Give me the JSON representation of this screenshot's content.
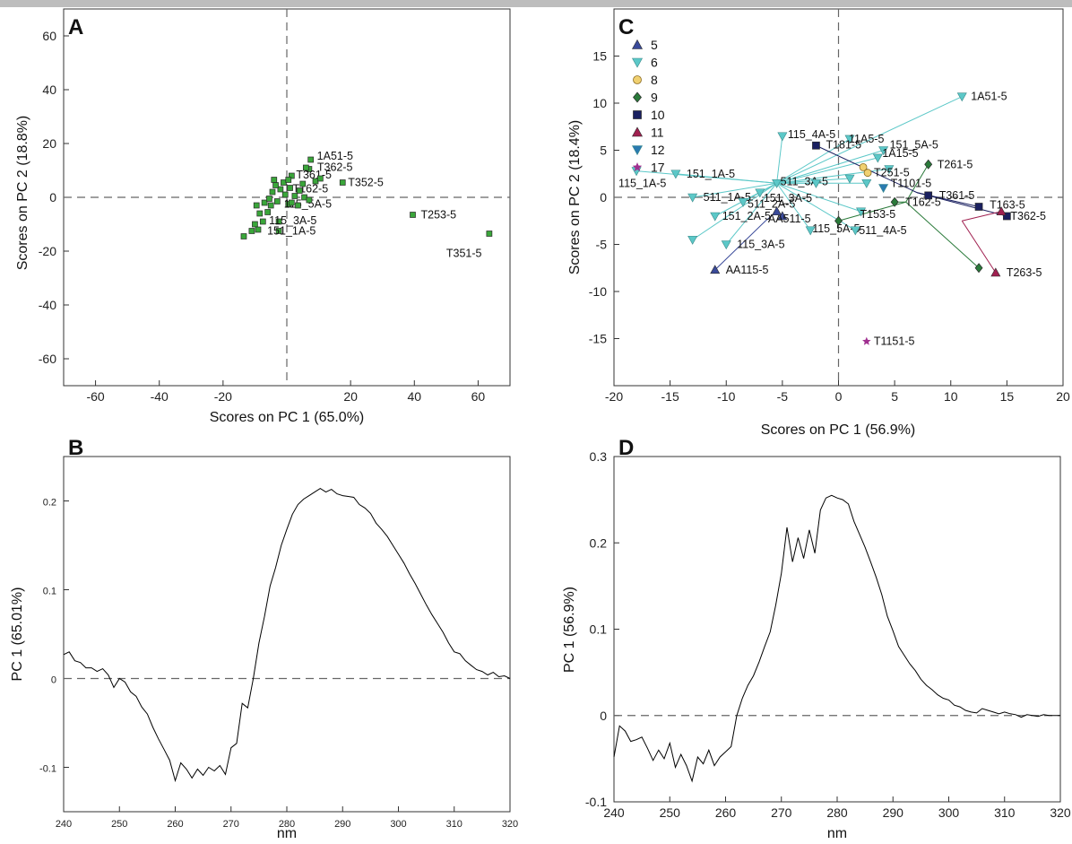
{
  "chart_data": [
    {
      "panel": "A",
      "type": "scatter",
      "xlabel": "Scores on PC 1 (65.0%)",
      "ylabel": "Scores on PC 2 (18.8%)",
      "xlim": [
        -70,
        70
      ],
      "ylim": [
        -70,
        70
      ],
      "xticks": [
        -60,
        -40,
        -20,
        20,
        40,
        60
      ],
      "yticks": [
        -60,
        -40,
        -20,
        0,
        20,
        40,
        60
      ],
      "grid": false,
      "marker_color": "#3aa63a",
      "points": [
        {
          "x": 7.5,
          "y": 14.0,
          "label": "1A51-5"
        },
        {
          "x": 7.0,
          "y": 10.5,
          "label": "T362-5"
        },
        {
          "x": 6.0,
          "y": 11.0,
          "label": ""
        },
        {
          "x": 1.5,
          "y": 8.0,
          "label": "T361-5"
        },
        {
          "x": 17.5,
          "y": 5.5,
          "label": "T352-5"
        },
        {
          "x": 1.0,
          "y": 3.5,
          "label": "T162-5"
        },
        {
          "x": 0.5,
          "y": -2.5,
          "label": "115_5A-5"
        },
        {
          "x": -2.5,
          "y": -9.0,
          "label": "115_3A-5"
        },
        {
          "x": -2.5,
          "y": -12.5,
          "label": "151_1A-5"
        },
        {
          "x": 39.5,
          "y": -6.5,
          "label": "T253-5"
        },
        {
          "x": 63.5,
          "y": -13.5,
          "label": "T351-5"
        },
        {
          "x": 9.0,
          "y": 6.0,
          "label": ""
        },
        {
          "x": 10.5,
          "y": 7.0,
          "label": ""
        },
        {
          "x": 5.0,
          "y": 5.0,
          "label": ""
        },
        {
          "x": 4.0,
          "y": 2.5,
          "label": ""
        },
        {
          "x": 2.5,
          "y": 0.5,
          "label": ""
        },
        {
          "x": 5.5,
          "y": 0.0,
          "label": ""
        },
        {
          "x": 7.0,
          "y": -1.0,
          "label": ""
        },
        {
          "x": 3.5,
          "y": -3.0,
          "label": ""
        },
        {
          "x": 1.5,
          "y": -2.0,
          "label": ""
        },
        {
          "x": -0.5,
          "y": 1.0,
          "label": ""
        },
        {
          "x": -2.0,
          "y": 3.0,
          "label": ""
        },
        {
          "x": -3.5,
          "y": 4.5,
          "label": ""
        },
        {
          "x": -4.5,
          "y": 2.0,
          "label": ""
        },
        {
          "x": -3.0,
          "y": -1.5,
          "label": ""
        },
        {
          "x": -5.0,
          "y": -3.0,
          "label": ""
        },
        {
          "x": -7.0,
          "y": -2.0,
          "label": ""
        },
        {
          "x": -6.0,
          "y": -5.5,
          "label": ""
        },
        {
          "x": -8.5,
          "y": -6.0,
          "label": ""
        },
        {
          "x": -7.5,
          "y": -9.0,
          "label": ""
        },
        {
          "x": -10.0,
          "y": -10.0,
          "label": ""
        },
        {
          "x": -9.0,
          "y": -12.0,
          "label": ""
        },
        {
          "x": -11.0,
          "y": -12.5,
          "label": ""
        },
        {
          "x": -13.5,
          "y": -14.5,
          "label": ""
        },
        {
          "x": -4.0,
          "y": 6.5,
          "label": ""
        },
        {
          "x": -1.0,
          "y": 5.5,
          "label": ""
        },
        {
          "x": 0.5,
          "y": 6.5,
          "label": ""
        },
        {
          "x": -5.5,
          "y": -0.5,
          "label": ""
        },
        {
          "x": -9.5,
          "y": -3.0,
          "label": ""
        }
      ]
    },
    {
      "panel": "B",
      "type": "line",
      "xlabel": "nm",
      "ylabel": "PC 1 (65.01%)",
      "xlim": [
        240,
        320
      ],
      "ylim": [
        -0.15,
        0.25
      ],
      "xticks": [
        240,
        250,
        260,
        270,
        280,
        290,
        300,
        310,
        320
      ],
      "yticks": [
        -0.1,
        0,
        0.1,
        0.2
      ],
      "ytick_labels": [
        "-0.1",
        "0",
        "0.1",
        "0.2"
      ],
      "x": [
        240,
        241,
        242,
        243,
        244,
        245,
        246,
        247,
        248,
        249,
        250,
        251,
        252,
        253,
        254,
        255,
        256,
        257,
        258,
        259,
        260,
        261,
        262,
        263,
        264,
        265,
        266,
        267,
        268,
        269,
        270,
        271,
        272,
        273,
        274,
        275,
        276,
        277,
        278,
        279,
        280,
        281,
        282,
        283,
        284,
        285,
        286,
        287,
        288,
        289,
        290,
        291,
        292,
        293,
        294,
        295,
        296,
        297,
        298,
        299,
        300,
        301,
        302,
        303,
        304,
        305,
        306,
        307,
        308,
        309,
        310,
        311,
        312,
        313,
        314,
        315,
        316,
        317,
        318,
        319,
        320
      ],
      "values": [
        0.027,
        0.03,
        0.02,
        0.018,
        0.012,
        0.012,
        0.008,
        0.011,
        0.004,
        -0.01,
        0.0,
        -0.004,
        -0.015,
        -0.02,
        -0.032,
        -0.04,
        -0.055,
        -0.068,
        -0.08,
        -0.092,
        -0.115,
        -0.095,
        -0.102,
        -0.112,
        -0.102,
        -0.109,
        -0.1,
        -0.104,
        -0.098,
        -0.108,
        -0.078,
        -0.073,
        -0.028,
        -0.033,
        0.0,
        0.04,
        0.07,
        0.104,
        0.125,
        0.15,
        0.168,
        0.185,
        0.196,
        0.202,
        0.206,
        0.21,
        0.214,
        0.21,
        0.213,
        0.208,
        0.206,
        0.205,
        0.204,
        0.196,
        0.192,
        0.186,
        0.175,
        0.168,
        0.16,
        0.15,
        0.14,
        0.13,
        0.118,
        0.107,
        0.095,
        0.083,
        0.072,
        0.062,
        0.052,
        0.04,
        0.03,
        0.028,
        0.02,
        0.015,
        0.01,
        0.008,
        0.004,
        0.007,
        0.002,
        0.003,
        0.0
      ]
    },
    {
      "panel": "C",
      "type": "scatter",
      "xlabel": "Scores on PC 1 (56.9%)",
      "ylabel": "Scores on PC 2 (18.4%)",
      "xlim": [
        -20,
        20
      ],
      "ylim": [
        -20,
        20
      ],
      "xticks": [
        -20,
        -15,
        -10,
        -5,
        0,
        5,
        10,
        15,
        20
      ],
      "yticks": [
        -15,
        -10,
        -5,
        0,
        5,
        10,
        15
      ],
      "grid": false,
      "legend_position": "top-left",
      "groups": [
        {
          "name": "5",
          "marker": "triangle-up",
          "color": "#3a4a9a"
        },
        {
          "name": "6",
          "marker": "triangle-down",
          "color": "#5cc8c8"
        },
        {
          "name": "8",
          "marker": "circle",
          "color": "#f0d070"
        },
        {
          "name": "9",
          "marker": "diamond",
          "color": "#2a7a3a"
        },
        {
          "name": "10",
          "marker": "square",
          "color": "#1a2060"
        },
        {
          "name": "11",
          "marker": "triangle-up",
          "color": "#a02050"
        },
        {
          "name": "12",
          "marker": "triangle-down",
          "color": "#2a7ab0"
        },
        {
          "name": "17",
          "marker": "star",
          "color": "#a03090"
        }
      ],
      "centers": [
        {
          "group": "6",
          "x": -5.5,
          "y": 1.5
        },
        {
          "group": "5",
          "x": -6.5,
          "y": -2.5
        },
        {
          "group": "9",
          "x": 6.0,
          "y": -0.5
        },
        {
          "group": "10",
          "x": 7.0,
          "y": 0.5
        },
        {
          "group": "11",
          "x": 11.0,
          "y": -2.5
        }
      ],
      "points": [
        {
          "group": "6",
          "x": 11.0,
          "y": 10.7,
          "label": "1A51-5",
          "center": 0
        },
        {
          "group": "6",
          "x": -5.0,
          "y": 6.5,
          "label": "115_4A-5",
          "center": 0
        },
        {
          "group": "6",
          "x": 1.0,
          "y": 6.2,
          "label": "11A5-5",
          "center": 0
        },
        {
          "group": "6",
          "x": 4.0,
          "y": 5.0,
          "label": "151_5A-5",
          "center": 0
        },
        {
          "group": "6",
          "x": 3.5,
          "y": 4.2,
          "label": "1A15-5",
          "center": 0
        },
        {
          "group": "6",
          "x": -18.0,
          "y": 2.8,
          "label": "115_1A-5",
          "center": 0
        },
        {
          "group": "6",
          "x": -14.5,
          "y": 2.5,
          "label": "151_1A-5",
          "center": 0
        },
        {
          "group": "6",
          "x": -5.5,
          "y": 1.5,
          "label": "511_3A-5",
          "center": -1
        },
        {
          "group": "6",
          "x": -7.0,
          "y": 0.5,
          "label": "151_3A-5",
          "center": 0
        },
        {
          "group": "6",
          "x": -13.0,
          "y": 0.0,
          "label": "511_1A-5",
          "center": 0
        },
        {
          "group": "6",
          "x": -8.5,
          "y": -0.5,
          "label": "511_2A-5",
          "center": 0
        },
        {
          "group": "6",
          "x": -11.0,
          "y": -2.0,
          "label": "151_2A-5",
          "center": 0
        },
        {
          "group": "6",
          "x": -13.0,
          "y": -4.5,
          "label": "",
          "center": 0
        },
        {
          "group": "6",
          "x": -10.0,
          "y": -5.0,
          "label": "115_3A-5",
          "center": 0
        },
        {
          "group": "6",
          "x": -2.5,
          "y": -3.5,
          "label": "115_5A-5",
          "center": 0
        },
        {
          "group": "6",
          "x": 1.5,
          "y": -3.5,
          "label": "511_4A-5",
          "center": 0
        },
        {
          "group": "6",
          "x": 2.0,
          "y": -1.5,
          "label": "T153-5",
          "center": 0
        },
        {
          "group": "6",
          "x": 2.5,
          "y": 1.5,
          "label": "",
          "center": 0
        },
        {
          "group": "6",
          "x": 1.0,
          "y": 2.0,
          "label": "",
          "center": 0
        },
        {
          "group": "6",
          "x": -2.0,
          "y": 1.5,
          "label": "",
          "center": 0
        },
        {
          "group": "6",
          "x": 4.5,
          "y": 3.0,
          "label": "",
          "center": 0
        },
        {
          "group": "5",
          "x": -5.0,
          "y": -2.0,
          "label": "AA511-5",
          "center": -1
        },
        {
          "group": "5",
          "x": -11.0,
          "y": -7.7,
          "label": "AA115-5",
          "center": 1
        },
        {
          "group": "5",
          "x": -5.5,
          "y": -1.5,
          "label": "",
          "center": 1
        },
        {
          "group": "8",
          "x": 2.2,
          "y": 3.2,
          "label": "T251-5",
          "center": -1
        },
        {
          "group": "8",
          "x": 2.6,
          "y": 2.6,
          "label": "",
          "center": -1
        },
        {
          "group": "9",
          "x": 8.0,
          "y": 3.5,
          "label": "T261-5",
          "center": 2
        },
        {
          "group": "9",
          "x": 5.0,
          "y": -0.5,
          "label": "T162-5",
          "center": 2
        },
        {
          "group": "9",
          "x": 0.0,
          "y": -2.5,
          "label": "",
          "center": 2
        },
        {
          "group": "9",
          "x": 12.5,
          "y": -7.5,
          "label": "",
          "center": 2
        },
        {
          "group": "10",
          "x": -2.0,
          "y": 5.5,
          "label": "T181-5",
          "center": 3
        },
        {
          "group": "10",
          "x": 8.0,
          "y": 0.2,
          "label": "T361-5",
          "center": 3
        },
        {
          "group": "10",
          "x": 12.5,
          "y": -1.0,
          "label": "T163-5",
          "center": 3
        },
        {
          "group": "10",
          "x": 15.0,
          "y": -2.0,
          "label": "T362-5",
          "center": 3
        },
        {
          "group": "11",
          "x": 14.5,
          "y": -1.5,
          "label": "",
          "center": 4
        },
        {
          "group": "11",
          "x": 14.0,
          "y": -8.0,
          "label": "T263-5",
          "center": 4
        },
        {
          "group": "12",
          "x": 4.0,
          "y": 1.0,
          "label": "T1101-5",
          "center": -1
        },
        {
          "group": "17",
          "x": 2.5,
          "y": -15.3,
          "label": "T1151-5",
          "center": -1
        }
      ]
    },
    {
      "panel": "D",
      "type": "line",
      "xlabel": "nm",
      "ylabel": "PC 1 (56.9%)",
      "xlim": [
        240,
        320
      ],
      "ylim": [
        -0.1,
        0.3
      ],
      "xticks": [
        240,
        250,
        260,
        270,
        280,
        290,
        300,
        310,
        320
      ],
      "yticks": [
        -0.1,
        0,
        0.1,
        0.2,
        0.3
      ],
      "ytick_labels": [
        "-0.1",
        "0",
        "0.1",
        "0.2",
        "0.3"
      ],
      "x": [
        240,
        241,
        242,
        243,
        244,
        245,
        246,
        247,
        248,
        249,
        250,
        251,
        252,
        253,
        254,
        255,
        256,
        257,
        258,
        259,
        260,
        261,
        262,
        263,
        264,
        265,
        266,
        267,
        268,
        269,
        270,
        271,
        272,
        273,
        274,
        275,
        276,
        277,
        278,
        279,
        280,
        281,
        282,
        283,
        284,
        285,
        286,
        287,
        288,
        289,
        290,
        291,
        292,
        293,
        294,
        295,
        296,
        297,
        298,
        299,
        300,
        301,
        302,
        303,
        304,
        305,
        306,
        307,
        308,
        309,
        310,
        311,
        312,
        313,
        314,
        315,
        316,
        317,
        318,
        319,
        320
      ],
      "values": [
        -0.048,
        -0.012,
        -0.018,
        -0.03,
        -0.028,
        -0.025,
        -0.038,
        -0.052,
        -0.04,
        -0.05,
        -0.032,
        -0.06,
        -0.045,
        -0.058,
        -0.076,
        -0.048,
        -0.056,
        -0.04,
        -0.058,
        -0.048,
        -0.042,
        -0.036,
        0.0,
        0.02,
        0.035,
        0.046,
        0.062,
        0.08,
        0.097,
        0.128,
        0.165,
        0.218,
        0.178,
        0.206,
        0.182,
        0.215,
        0.188,
        0.238,
        0.252,
        0.255,
        0.252,
        0.25,
        0.245,
        0.225,
        0.21,
        0.195,
        0.178,
        0.16,
        0.14,
        0.115,
        0.098,
        0.08,
        0.07,
        0.06,
        0.052,
        0.042,
        0.035,
        0.03,
        0.024,
        0.02,
        0.018,
        0.012,
        0.01,
        0.006,
        0.004,
        0.003,
        0.008,
        0.006,
        0.004,
        0.002,
        0.004,
        0.002,
        0.001,
        -0.002,
        0.001,
        0.0,
        -0.001,
        0.001,
        0.0,
        0.0,
        0.0
      ]
    }
  ]
}
